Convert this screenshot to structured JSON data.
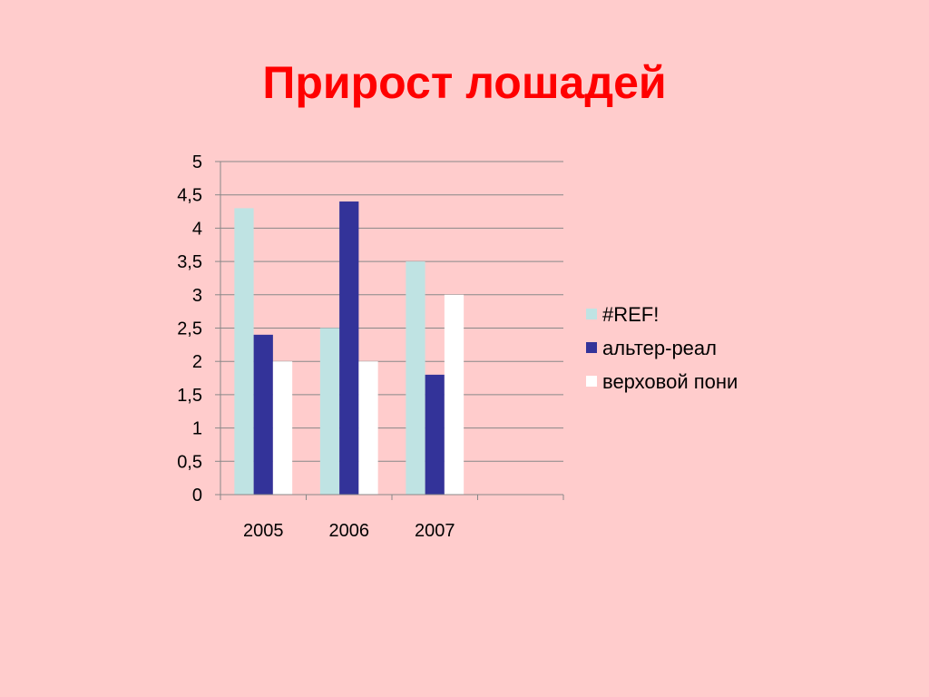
{
  "slide": {
    "title": "Прирост лошадей"
  },
  "chart_data": {
    "type": "bar",
    "categories": [
      "2005",
      "2006",
      "2007",
      ""
    ],
    "series": [
      {
        "name": "#REF!",
        "values": [
          4.3,
          2.5,
          3.5,
          null
        ],
        "color": "#bfe3e3"
      },
      {
        "name": "альтер-реал",
        "values": [
          2.4,
          4.4,
          1.8,
          null
        ],
        "color": "#333399"
      },
      {
        "name": "верховой пони",
        "values": [
          2.0,
          2.0,
          3.0,
          null
        ],
        "color": "#ffffff"
      }
    ],
    "ylim": [
      0,
      5
    ],
    "yticks": [
      0,
      0.5,
      1,
      1.5,
      2,
      2.5,
      3,
      3.5,
      4,
      4.5,
      5
    ],
    "ytick_labels": [
      "0",
      "0,5",
      "1",
      "1,5",
      "2",
      "2,5",
      "3",
      "3,5",
      "4",
      "4,5",
      "5"
    ],
    "grid": true,
    "legend_position": "right",
    "title": "",
    "xlabel": "",
    "ylabel": ""
  }
}
